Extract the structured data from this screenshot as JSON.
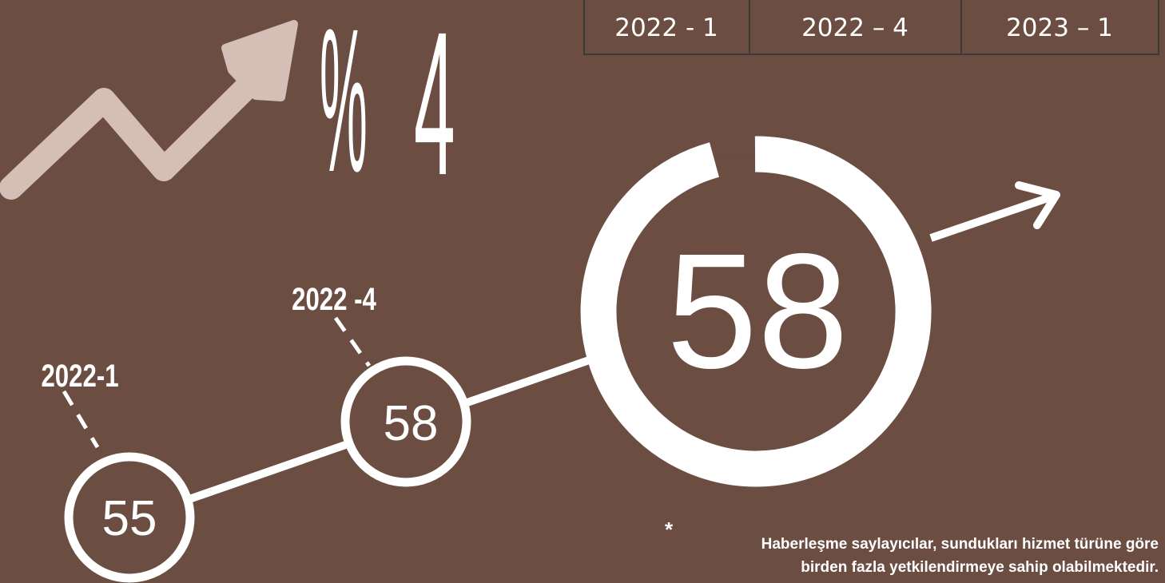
{
  "period_table": {
    "cells": [
      "2022 - 1",
      "2022 – 4",
      "2023 – 1"
    ]
  },
  "growth": {
    "symbol": "%",
    "value": "4"
  },
  "current": {
    "value": "58"
  },
  "points": [
    {
      "label": "2022-1",
      "value": "55"
    },
    {
      "label": "2022 -4",
      "value": "58"
    }
  ],
  "footnote": {
    "marker": "*",
    "lines": [
      "Haberleşme saylayıcılar, sundukları hizmet türüne göre",
      "birden fazla yetkilendirmeye sahip olabilmektedir."
    ]
  }
}
